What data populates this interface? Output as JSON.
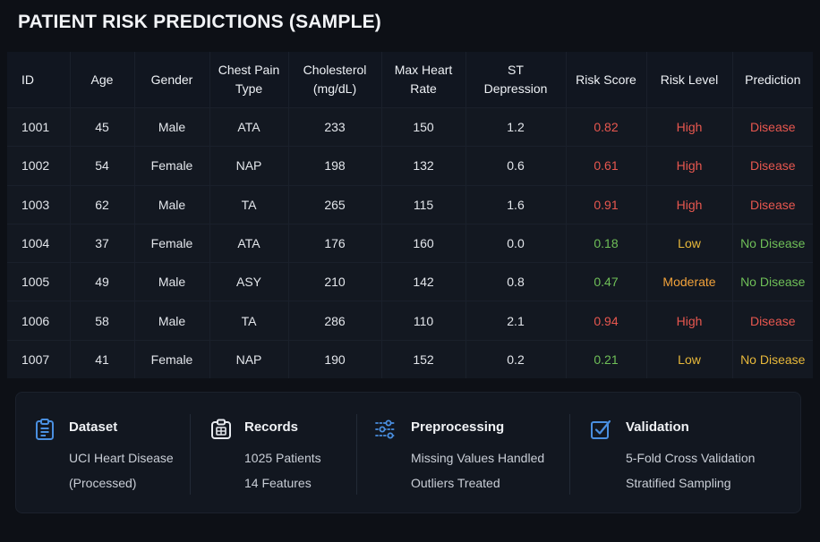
{
  "page": {
    "title": "PATIENT RISK PREDICTIONS (SAMPLE)"
  },
  "table": {
    "columns": [
      {
        "lines": [
          "ID"
        ]
      },
      {
        "lines": [
          "Age"
        ]
      },
      {
        "lines": [
          "Gender"
        ]
      },
      {
        "lines": [
          "Chest Pain",
          "Type"
        ]
      },
      {
        "lines": [
          "Cholesterol",
          "(mg/dL)"
        ]
      },
      {
        "lines": [
          "Max Heart",
          "Rate"
        ]
      },
      {
        "lines": [
          "ST",
          "Depression"
        ]
      },
      {
        "lines": [
          "Risk Score"
        ]
      },
      {
        "lines": [
          "Risk Level"
        ]
      },
      {
        "lines": [
          "Prediction"
        ]
      }
    ],
    "rows": [
      {
        "id": "1001",
        "age": "45",
        "gender": "Male",
        "cp": "ATA",
        "chol": "233",
        "hr": "150",
        "st": "1.2",
        "score": "0.82",
        "level": "High",
        "prediction": "Disease",
        "tone": "red",
        "levelTone": "red",
        "predTone": "red"
      },
      {
        "id": "1002",
        "age": "54",
        "gender": "Female",
        "cp": "NAP",
        "chol": "198",
        "hr": "132",
        "st": "0.6",
        "score": "0.61",
        "level": "High",
        "prediction": "Disease",
        "tone": "red",
        "levelTone": "red",
        "predTone": "red"
      },
      {
        "id": "1003",
        "age": "62",
        "gender": "Male",
        "cp": "TA",
        "chol": "265",
        "hr": "115",
        "st": "1.6",
        "score": "0.91",
        "level": "High",
        "prediction": "Disease",
        "tone": "red",
        "levelTone": "red",
        "predTone": "red"
      },
      {
        "id": "1004",
        "age": "37",
        "gender": "Female",
        "cp": "ATA",
        "chol": "176",
        "hr": "160",
        "st": "0.0",
        "score": "0.18",
        "level": "Low",
        "prediction": "No Disease",
        "tone": "green",
        "levelTone": "yellow",
        "predTone": "green"
      },
      {
        "id": "1005",
        "age": "49",
        "gender": "Male",
        "cp": "ASY",
        "chol": "210",
        "hr": "142",
        "st": "0.8",
        "score": "0.47",
        "level": "Moderate",
        "prediction": "No Disease",
        "tone": "green",
        "levelTone": "orange",
        "predTone": "green"
      },
      {
        "id": "1006",
        "age": "58",
        "gender": "Male",
        "cp": "TA",
        "chol": "286",
        "hr": "110",
        "st": "2.1",
        "score": "0.94",
        "level": "High",
        "prediction": "Disease",
        "tone": "red",
        "levelTone": "red",
        "predTone": "red"
      },
      {
        "id": "1007",
        "age": "41",
        "gender": "Female",
        "cp": "NAP",
        "chol": "190",
        "hr": "152",
        "st": "0.2",
        "score": "0.21",
        "level": "Low",
        "prediction": "No Disease",
        "tone": "green",
        "levelTone": "yellow",
        "predTone": "yellow"
      }
    ]
  },
  "info": {
    "dataset": {
      "title": "Dataset",
      "line1": "UCI Heart Disease",
      "line2": "(Processed)",
      "icon": "clipboard-icon"
    },
    "records": {
      "title": "Records",
      "line1": "1025 Patients",
      "line2": "14 Features",
      "icon": "database-icon"
    },
    "preprocessing": {
      "title": "Preprocessing",
      "line1": "Missing Values Handled",
      "line2": "Outliers Treated",
      "icon": "sliders-icon"
    },
    "validation": {
      "title": "Validation",
      "line1": "5-Fold Cross Validation",
      "line2": "Stratified Sampling",
      "icon": "checkbox-icon"
    }
  },
  "colors": {
    "red": "#e8574f",
    "orange": "#f2a23a",
    "yellow": "#e7b83a",
    "green": "#6fbf58",
    "accent": "#4a8fe0"
  }
}
